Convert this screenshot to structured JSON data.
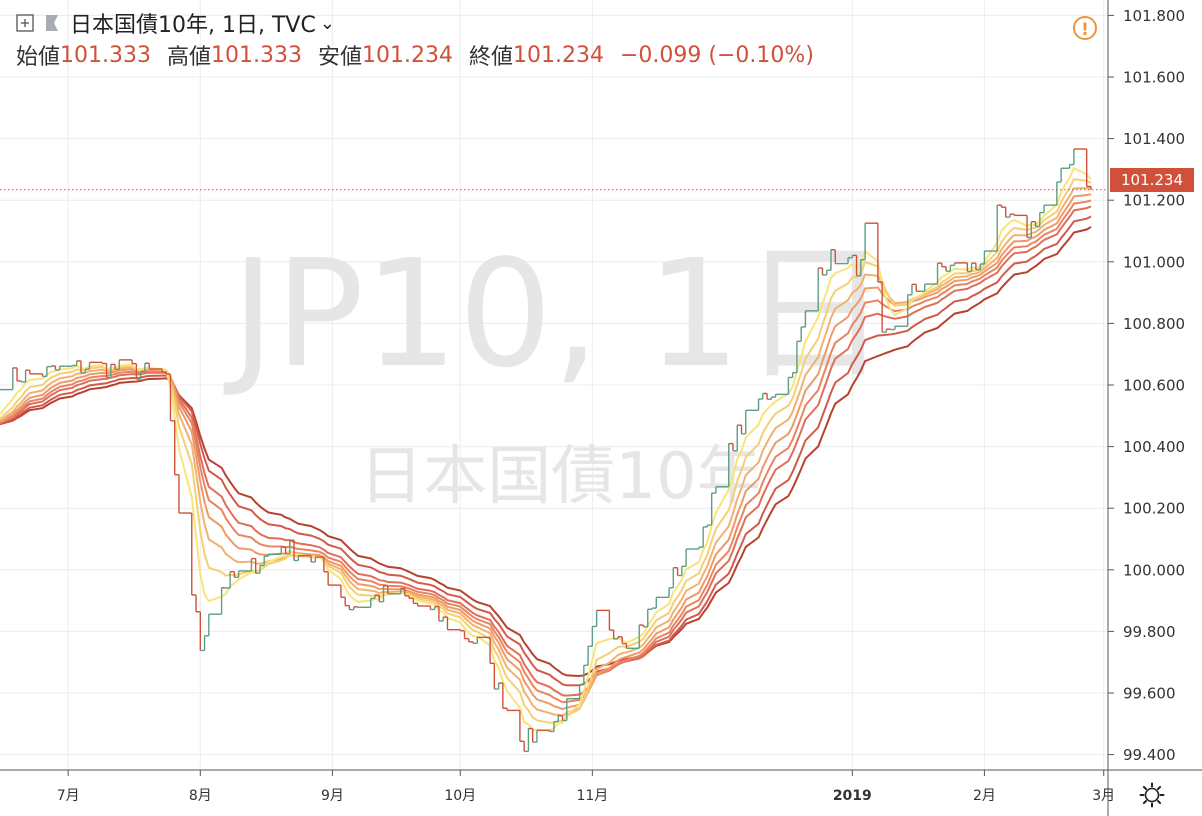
{
  "header": {
    "symbol": "日本国債10年, 1日, TVC",
    "chevron": "⌄",
    "plus_icon": "plus-square-icon",
    "flag_icon": "flag-icon",
    "open_label": "始値",
    "open_value": "101.333",
    "high_label": "高値",
    "high_value": "101.333",
    "low_label": "安値",
    "low_value": "101.234",
    "close_label": "終値",
    "close_value": "101.234",
    "change": "−0.099 (−0.10%)"
  },
  "watermark": {
    "main": "JP10, 1日",
    "sub": "日本国債10年"
  },
  "warning_icon": "!",
  "current_price_label": "101.234",
  "colors": {
    "up": "#5c9e83",
    "down": "#d0503a",
    "grid": "#ececec",
    "axis_text": "#333333",
    "ribbon": [
      "#f9e47a",
      "#f6ce76",
      "#f2b16f",
      "#ee9a68",
      "#e98462",
      "#e06e59",
      "#d35a4b",
      "#b8422f"
    ]
  },
  "chart_data": {
    "type": "line",
    "title": "日本国債10年, 1日, TVC",
    "ylim": [
      99.35,
      101.85
    ],
    "y_ticks": [
      "101.800",
      "101.600",
      "101.400",
      "101.200",
      "101.000",
      "100.800",
      "100.600",
      "100.400",
      "100.200",
      "100.000",
      "99.800",
      "99.600",
      "99.400"
    ],
    "x_ticks": [
      {
        "label": "7月",
        "date": "2018-07-01",
        "bold": false
      },
      {
        "label": "8月",
        "date": "2018-08-01",
        "bold": false
      },
      {
        "label": "9月",
        "date": "2018-09-01",
        "bold": false
      },
      {
        "label": "10月",
        "date": "2018-10-01",
        "bold": false
      },
      {
        "label": "11月",
        "date": "2018-11-01",
        "bold": false
      },
      {
        "label": "2019",
        "date": "2019-01-01",
        "bold": true
      },
      {
        "label": "2月",
        "date": "2019-02-01",
        "bold": false
      },
      {
        "label": "3月",
        "date": "2019-03-01",
        "bold": false
      }
    ],
    "xlim": [
      "2018-06-15",
      "2019-03-02"
    ],
    "price_anchors": [
      [
        "2018-06-15",
        100.62
      ],
      [
        "2018-07-05",
        100.66
      ],
      [
        "2018-07-15",
        100.65
      ],
      [
        "2018-07-24",
        100.63
      ],
      [
        "2018-07-26",
        100.28
      ],
      [
        "2018-07-29",
        100.02
      ],
      [
        "2018-08-01",
        99.75
      ],
      [
        "2018-08-04",
        99.93
      ],
      [
        "2018-08-10",
        99.98
      ],
      [
        "2018-08-20",
        100.08
      ],
      [
        "2018-08-28",
        100.03
      ],
      [
        "2018-09-05",
        99.88
      ],
      [
        "2018-09-15",
        99.93
      ],
      [
        "2018-09-25",
        99.85
      ],
      [
        "2018-10-05",
        99.76
      ],
      [
        "2018-10-12",
        99.55
      ],
      [
        "2018-10-16",
        99.44
      ],
      [
        "2018-10-24",
        99.52
      ],
      [
        "2018-10-29",
        99.6
      ],
      [
        "2018-11-02",
        99.85
      ],
      [
        "2018-11-10",
        99.77
      ],
      [
        "2018-11-18",
        99.94
      ],
      [
        "2018-11-26",
        100.1
      ],
      [
        "2018-12-04",
        100.42
      ],
      [
        "2018-12-10",
        100.55
      ],
      [
        "2018-12-17",
        100.62
      ],
      [
        "2018-12-24",
        100.98
      ],
      [
        "2018-12-28",
        101.02
      ],
      [
        "2019-01-03",
        100.98
      ],
      [
        "2019-01-05",
        101.22
      ],
      [
        "2019-01-08",
        100.74
      ],
      [
        "2019-01-15",
        100.9
      ],
      [
        "2019-01-22",
        100.98
      ],
      [
        "2019-01-30",
        100.98
      ],
      [
        "2019-02-04",
        101.15
      ],
      [
        "2019-02-11",
        101.1
      ],
      [
        "2019-02-18",
        101.24
      ],
      [
        "2019-02-22",
        101.37
      ],
      [
        "2019-02-26",
        101.234
      ]
    ],
    "ribbon_periods": [
      5,
      8,
      11,
      14,
      17,
      20,
      25,
      30
    ],
    "last_price": 101.234
  },
  "x_axis_button": "gear-icon"
}
